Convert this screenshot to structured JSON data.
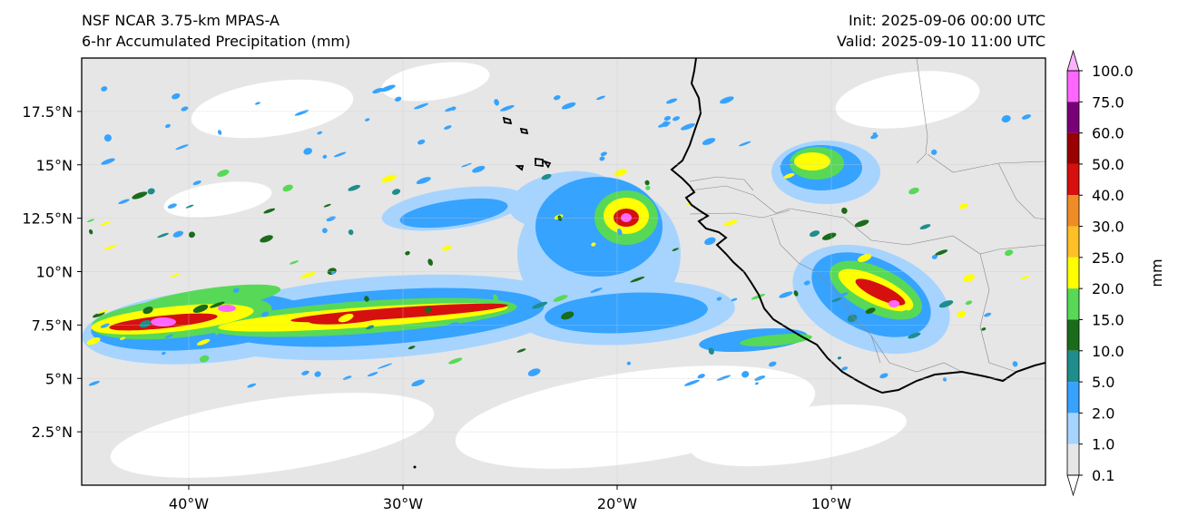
{
  "header": {
    "title_left_line1": "NSF NCAR 3.75-km MPAS-A",
    "title_left_line2": "6-hr Accumulated Precipitation (mm)",
    "title_right_line1": "Init: 2025-09-06 00:00 UTC",
    "title_right_line2": "Valid: 2025-09-10 11:00 UTC"
  },
  "map": {
    "lon_ticks": [
      {
        "label": "40°W",
        "lon": -40
      },
      {
        "label": "30°W",
        "lon": -30
      },
      {
        "label": "20°W",
        "lon": -20
      },
      {
        "label": "10°W",
        "lon": -10
      }
    ],
    "lat_ticks": [
      {
        "label": "17.5°N",
        "lat": 17.5
      },
      {
        "label": "15°N",
        "lat": 15
      },
      {
        "label": "12.5°N",
        "lat": 12.5
      },
      {
        "label": "10°N",
        "lat": 10
      },
      {
        "label": "7.5°N",
        "lat": 7.5
      },
      {
        "label": "5°N",
        "lat": 5
      },
      {
        "label": "2.5°N",
        "lat": 2.5
      }
    ],
    "extent": {
      "lon_min": -45,
      "lon_max": 0,
      "lat_min": 0,
      "lat_max": 20
    }
  },
  "colorbar": {
    "unit_label": "mm",
    "levels": [
      "0.1",
      "1.0",
      "2.0",
      "5.0",
      "10.0",
      "15.0",
      "20.0",
      "25.0",
      "30.0",
      "40.0",
      "50.0",
      "60.0",
      "75.0",
      "100.0"
    ],
    "colors": [
      "#e6e6e6",
      "#a6d4ff",
      "#36a3ff",
      "#1f8d8c",
      "#1a6b1a",
      "#57d957",
      "#ffff00",
      "#ffbf26",
      "#f08c26",
      "#d60f0f",
      "#990000",
      "#7a0078",
      "#ff66ff"
    ]
  }
}
